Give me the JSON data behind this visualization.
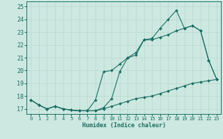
{
  "xlabel": "Humidex (Indice chaleur)",
  "xlim": [
    -0.5,
    23.5
  ],
  "ylim": [
    16.6,
    25.4
  ],
  "yticks": [
    17,
    18,
    19,
    20,
    21,
    22,
    23,
    24,
    25
  ],
  "xticks": [
    0,
    1,
    2,
    3,
    4,
    5,
    6,
    7,
    8,
    9,
    10,
    11,
    12,
    13,
    14,
    15,
    16,
    17,
    18,
    19,
    20,
    21,
    22,
    23
  ],
  "bg_color": "#cce8e0",
  "line_color": "#1a6e62",
  "grid_color": "#b8d8d0",
  "line1_x": [
    0,
    1,
    2,
    3,
    4,
    5,
    6,
    7,
    8,
    9,
    10,
    11,
    12,
    13,
    14,
    15,
    16,
    17,
    18,
    19,
    20,
    21,
    22,
    23
  ],
  "line1_y": [
    17.7,
    17.3,
    17.0,
    17.2,
    17.0,
    16.9,
    16.85,
    16.85,
    17.7,
    19.9,
    20.0,
    20.5,
    21.0,
    21.2,
    22.4,
    22.4,
    22.6,
    22.8,
    23.1,
    23.3,
    23.5,
    23.1,
    20.8,
    19.3
  ],
  "line2_x": [
    0,
    1,
    2,
    3,
    4,
    5,
    6,
    7,
    8,
    9,
    10,
    11,
    12,
    13,
    14,
    15,
    16,
    17,
    18,
    19,
    20,
    21,
    22,
    23
  ],
  "line2_y": [
    17.7,
    17.3,
    17.0,
    17.2,
    17.0,
    16.9,
    16.85,
    16.85,
    16.85,
    17.1,
    17.8,
    19.9,
    21.0,
    21.4,
    22.4,
    22.5,
    23.3,
    24.0,
    24.7,
    23.3,
    23.5,
    23.1,
    20.8,
    19.3
  ],
  "line3_x": [
    0,
    1,
    2,
    3,
    4,
    5,
    6,
    7,
    8,
    9,
    10,
    11,
    12,
    13,
    14,
    15,
    16,
    17,
    18,
    19,
    20,
    21,
    22,
    23
  ],
  "line3_y": [
    17.7,
    17.3,
    17.0,
    17.2,
    17.0,
    16.9,
    16.85,
    16.85,
    16.85,
    17.0,
    17.2,
    17.4,
    17.6,
    17.8,
    17.9,
    18.0,
    18.2,
    18.4,
    18.6,
    18.8,
    19.0,
    19.1,
    19.2,
    19.3
  ]
}
